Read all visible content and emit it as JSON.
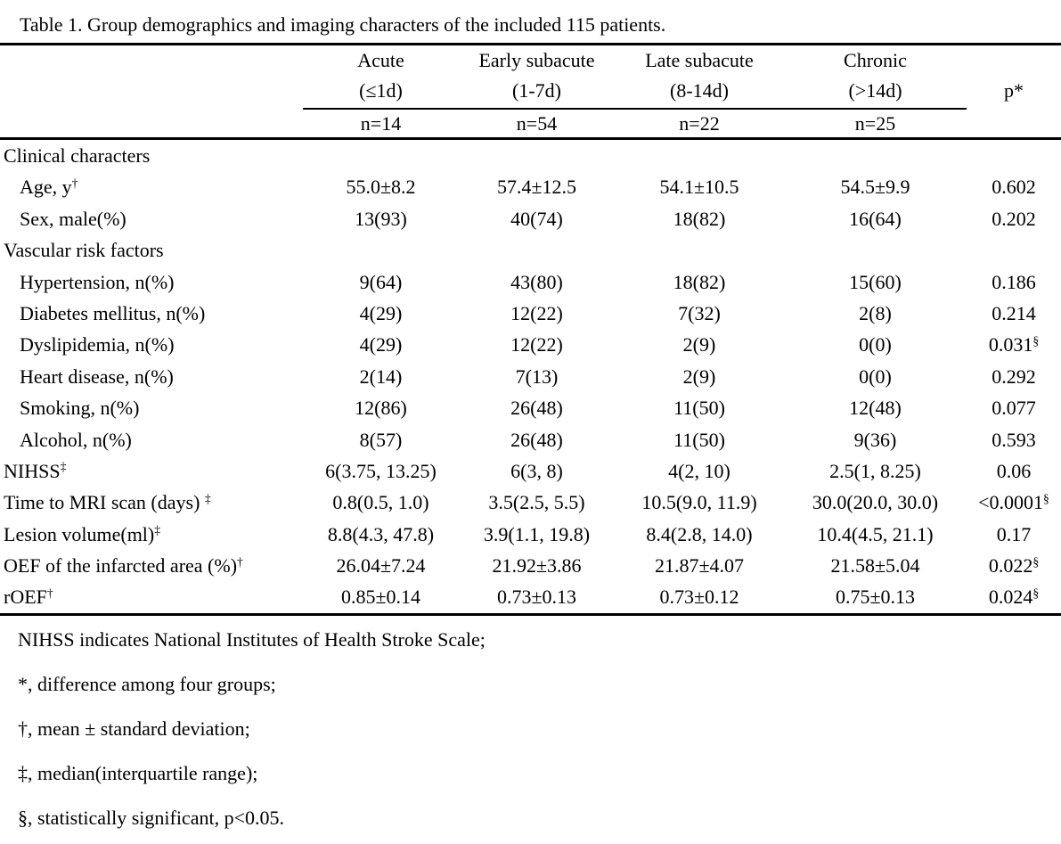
{
  "title": "Table 1. Group demographics and imaging characters of the included 115 patients.",
  "table": {
    "groups": [
      {
        "name": "Acute",
        "range": "(≤1d)",
        "n": "n=14"
      },
      {
        "name": "Early subacute",
        "range": "(1-7d)",
        "n": "n=54"
      },
      {
        "name": "Late subacute",
        "range": "(8-14d)",
        "n": "n=22"
      },
      {
        "name": "Chronic",
        "range": "(>14d)",
        "n": "n=25"
      }
    ],
    "p_header": "p*",
    "rows": [
      {
        "label": "Clinical characters",
        "sup": "",
        "indent": false,
        "cells": [
          "",
          "",
          "",
          ""
        ],
        "p": "",
        "p_sup": ""
      },
      {
        "label": "Age, y",
        "sup": "†",
        "indent": true,
        "cells": [
          "55.0±8.2",
          "57.4±12.5",
          "54.1±10.5",
          "54.5±9.9"
        ],
        "p": "0.602",
        "p_sup": ""
      },
      {
        "label": "Sex, male(%)",
        "sup": "",
        "indent": true,
        "cells": [
          "13(93)",
          "40(74)",
          "18(82)",
          "16(64)"
        ],
        "p": "0.202",
        "p_sup": ""
      },
      {
        "label": "Vascular risk factors",
        "sup": "",
        "indent": false,
        "cells": [
          "",
          "",
          "",
          ""
        ],
        "p": "",
        "p_sup": ""
      },
      {
        "label": "Hypertension, n(%)",
        "sup": "",
        "indent": true,
        "cells": [
          "9(64)",
          "43(80)",
          "18(82)",
          "15(60)"
        ],
        "p": "0.186",
        "p_sup": ""
      },
      {
        "label": "Diabetes mellitus, n(%)",
        "sup": "",
        "indent": true,
        "cells": [
          "4(29)",
          "12(22)",
          "7(32)",
          "2(8)"
        ],
        "p": "0.214",
        "p_sup": ""
      },
      {
        "label": "Dyslipidemia, n(%)",
        "sup": "",
        "indent": true,
        "cells": [
          "4(29)",
          "12(22)",
          "2(9)",
          "0(0)"
        ],
        "p": "0.031",
        "p_sup": "§"
      },
      {
        "label": "Heart disease, n(%)",
        "sup": "",
        "indent": true,
        "cells": [
          "2(14)",
          "7(13)",
          "2(9)",
          "0(0)"
        ],
        "p": "0.292",
        "p_sup": ""
      },
      {
        "label": "Smoking, n(%)",
        "sup": "",
        "indent": true,
        "cells": [
          "12(86)",
          "26(48)",
          "11(50)",
          "12(48)"
        ],
        "p": "0.077",
        "p_sup": ""
      },
      {
        "label": "Alcohol, n(%)",
        "sup": "",
        "indent": true,
        "cells": [
          "8(57)",
          "26(48)",
          "11(50)",
          "9(36)"
        ],
        "p": "0.593",
        "p_sup": ""
      },
      {
        "label": "NIHSS",
        "sup": "‡",
        "indent": false,
        "cells": [
          "6(3.75, 13.25)",
          "6(3, 8)",
          "4(2, 10)",
          "2.5(1, 8.25)"
        ],
        "p": "0.06",
        "p_sup": ""
      },
      {
        "label": "Time to MRI scan (days) ",
        "sup": "‡",
        "indent": false,
        "cells": [
          "0.8(0.5, 1.0)",
          "3.5(2.5, 5.5)",
          "10.5(9.0, 11.9)",
          "30.0(20.0, 30.0)"
        ],
        "p": "<0.0001",
        "p_sup": "§"
      },
      {
        "label": "Lesion volume(ml)",
        "sup": "‡",
        "indent": false,
        "cells": [
          "8.8(4.3, 47.8)",
          "3.9(1.1, 19.8)",
          "8.4(2.8, 14.0)",
          "10.4(4.5, 21.1)"
        ],
        "p": "0.17",
        "p_sup": ""
      },
      {
        "label": "OEF of the infarcted area (%)",
        "sup": "†",
        "indent": false,
        "cells": [
          "26.04±7.24",
          "21.92±3.86",
          "21.87±4.07",
          "21.58±5.04"
        ],
        "p": "0.022",
        "p_sup": "§"
      },
      {
        "label": "rOEF",
        "sup": "†",
        "indent": false,
        "cells": [
          "0.85±0.14",
          "0.73±0.13",
          "0.73±0.12",
          "0.75±0.13"
        ],
        "p": "0.024",
        "p_sup": "§"
      }
    ]
  },
  "footnotes": [
    "NIHSS indicates National Institutes of Health Stroke Scale;",
    "*, difference among four groups;",
    "†, mean ± standard deviation;",
    "‡, median(interquartile range);",
    "§, statistically significant, p<0.05."
  ]
}
